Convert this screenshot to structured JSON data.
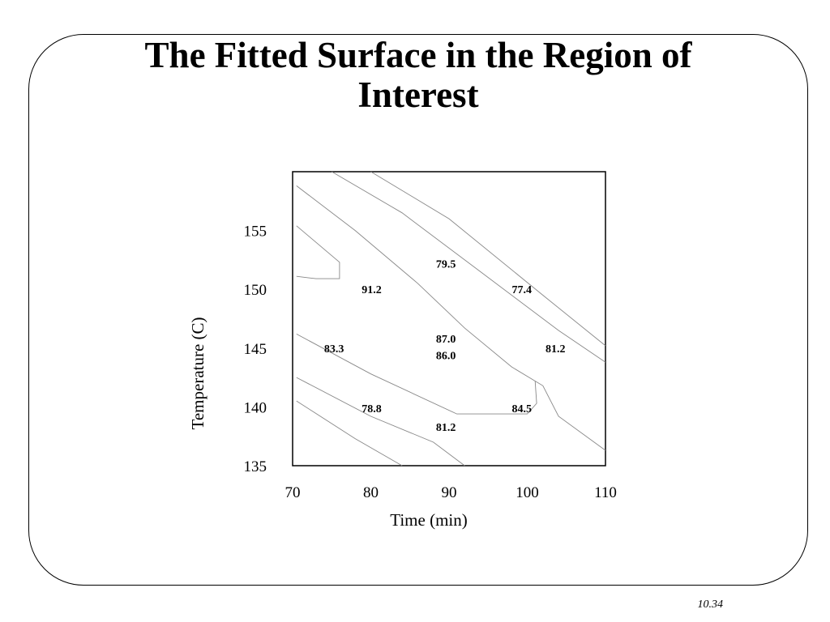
{
  "slide": {
    "title_line1": "The Fitted Surface in the Region of",
    "title_line2": "Interest",
    "page_number": "10.34"
  },
  "chart_data": {
    "type": "contour",
    "xlabel": "Time (min)",
    "ylabel": "Temperature (C)",
    "xlim": [
      70,
      110
    ],
    "ylim": [
      135,
      160
    ],
    "xticks": [
      70,
      80,
      90,
      100,
      110
    ],
    "yticks": [
      135,
      140,
      145,
      150,
      155
    ],
    "grid": false,
    "line_color": "#888888",
    "contours": [
      {
        "points": [
          [
            70.5,
            158.8
          ],
          [
            78,
            155
          ],
          [
            86,
            150.5
          ],
          [
            92,
            146.7
          ],
          [
            98,
            143.4
          ],
          [
            102,
            141.8
          ],
          [
            104,
            139.2
          ],
          [
            110,
            136.3
          ]
        ]
      },
      {
        "points": [
          [
            75,
            160
          ],
          [
            84,
            156.5
          ],
          [
            94,
            151.5
          ],
          [
            104,
            146.5
          ],
          [
            110,
            143.8
          ]
        ]
      },
      {
        "points": [
          [
            80,
            160
          ],
          [
            90,
            156
          ],
          [
            102,
            149.5
          ],
          [
            110,
            145.2
          ]
        ]
      },
      {
        "points": [
          [
            70.5,
            155.4
          ],
          [
            76,
            152.3
          ],
          [
            76,
            150.9
          ],
          [
            73,
            150.9
          ],
          [
            70.5,
            151.1
          ]
        ]
      },
      {
        "points": [
          [
            70.5,
            146.2
          ],
          [
            80,
            142.8
          ],
          [
            91,
            139.4
          ],
          [
            100,
            139.4
          ],
          [
            101.2,
            140.3
          ],
          [
            101,
            142.2
          ]
        ]
      },
      {
        "points": [
          [
            70.5,
            142.5
          ],
          [
            80,
            139.2
          ],
          [
            88,
            137
          ],
          [
            92,
            135
          ]
        ]
      },
      {
        "points": [
          [
            70.5,
            140.5
          ],
          [
            78,
            137.3
          ],
          [
            84,
            135
          ]
        ]
      }
    ],
    "labels": [
      {
        "text": "79.5",
        "x": 89.6,
        "y": 152.2
      },
      {
        "text": "91.2",
        "x": 80.1,
        "y": 150
      },
      {
        "text": "77.4",
        "x": 99.3,
        "y": 150
      },
      {
        "text": "87.0",
        "x": 89.6,
        "y": 145.8
      },
      {
        "text": "86.0",
        "x": 89.6,
        "y": 144.4
      },
      {
        "text": "83.3",
        "x": 75.3,
        "y": 145
      },
      {
        "text": "81.2",
        "x": 103.6,
        "y": 145
      },
      {
        "text": "78.8",
        "x": 80.1,
        "y": 139.9
      },
      {
        "text": "84.5",
        "x": 99.3,
        "y": 139.9
      },
      {
        "text": "81.2",
        "x": 89.6,
        "y": 138.3
      }
    ]
  }
}
